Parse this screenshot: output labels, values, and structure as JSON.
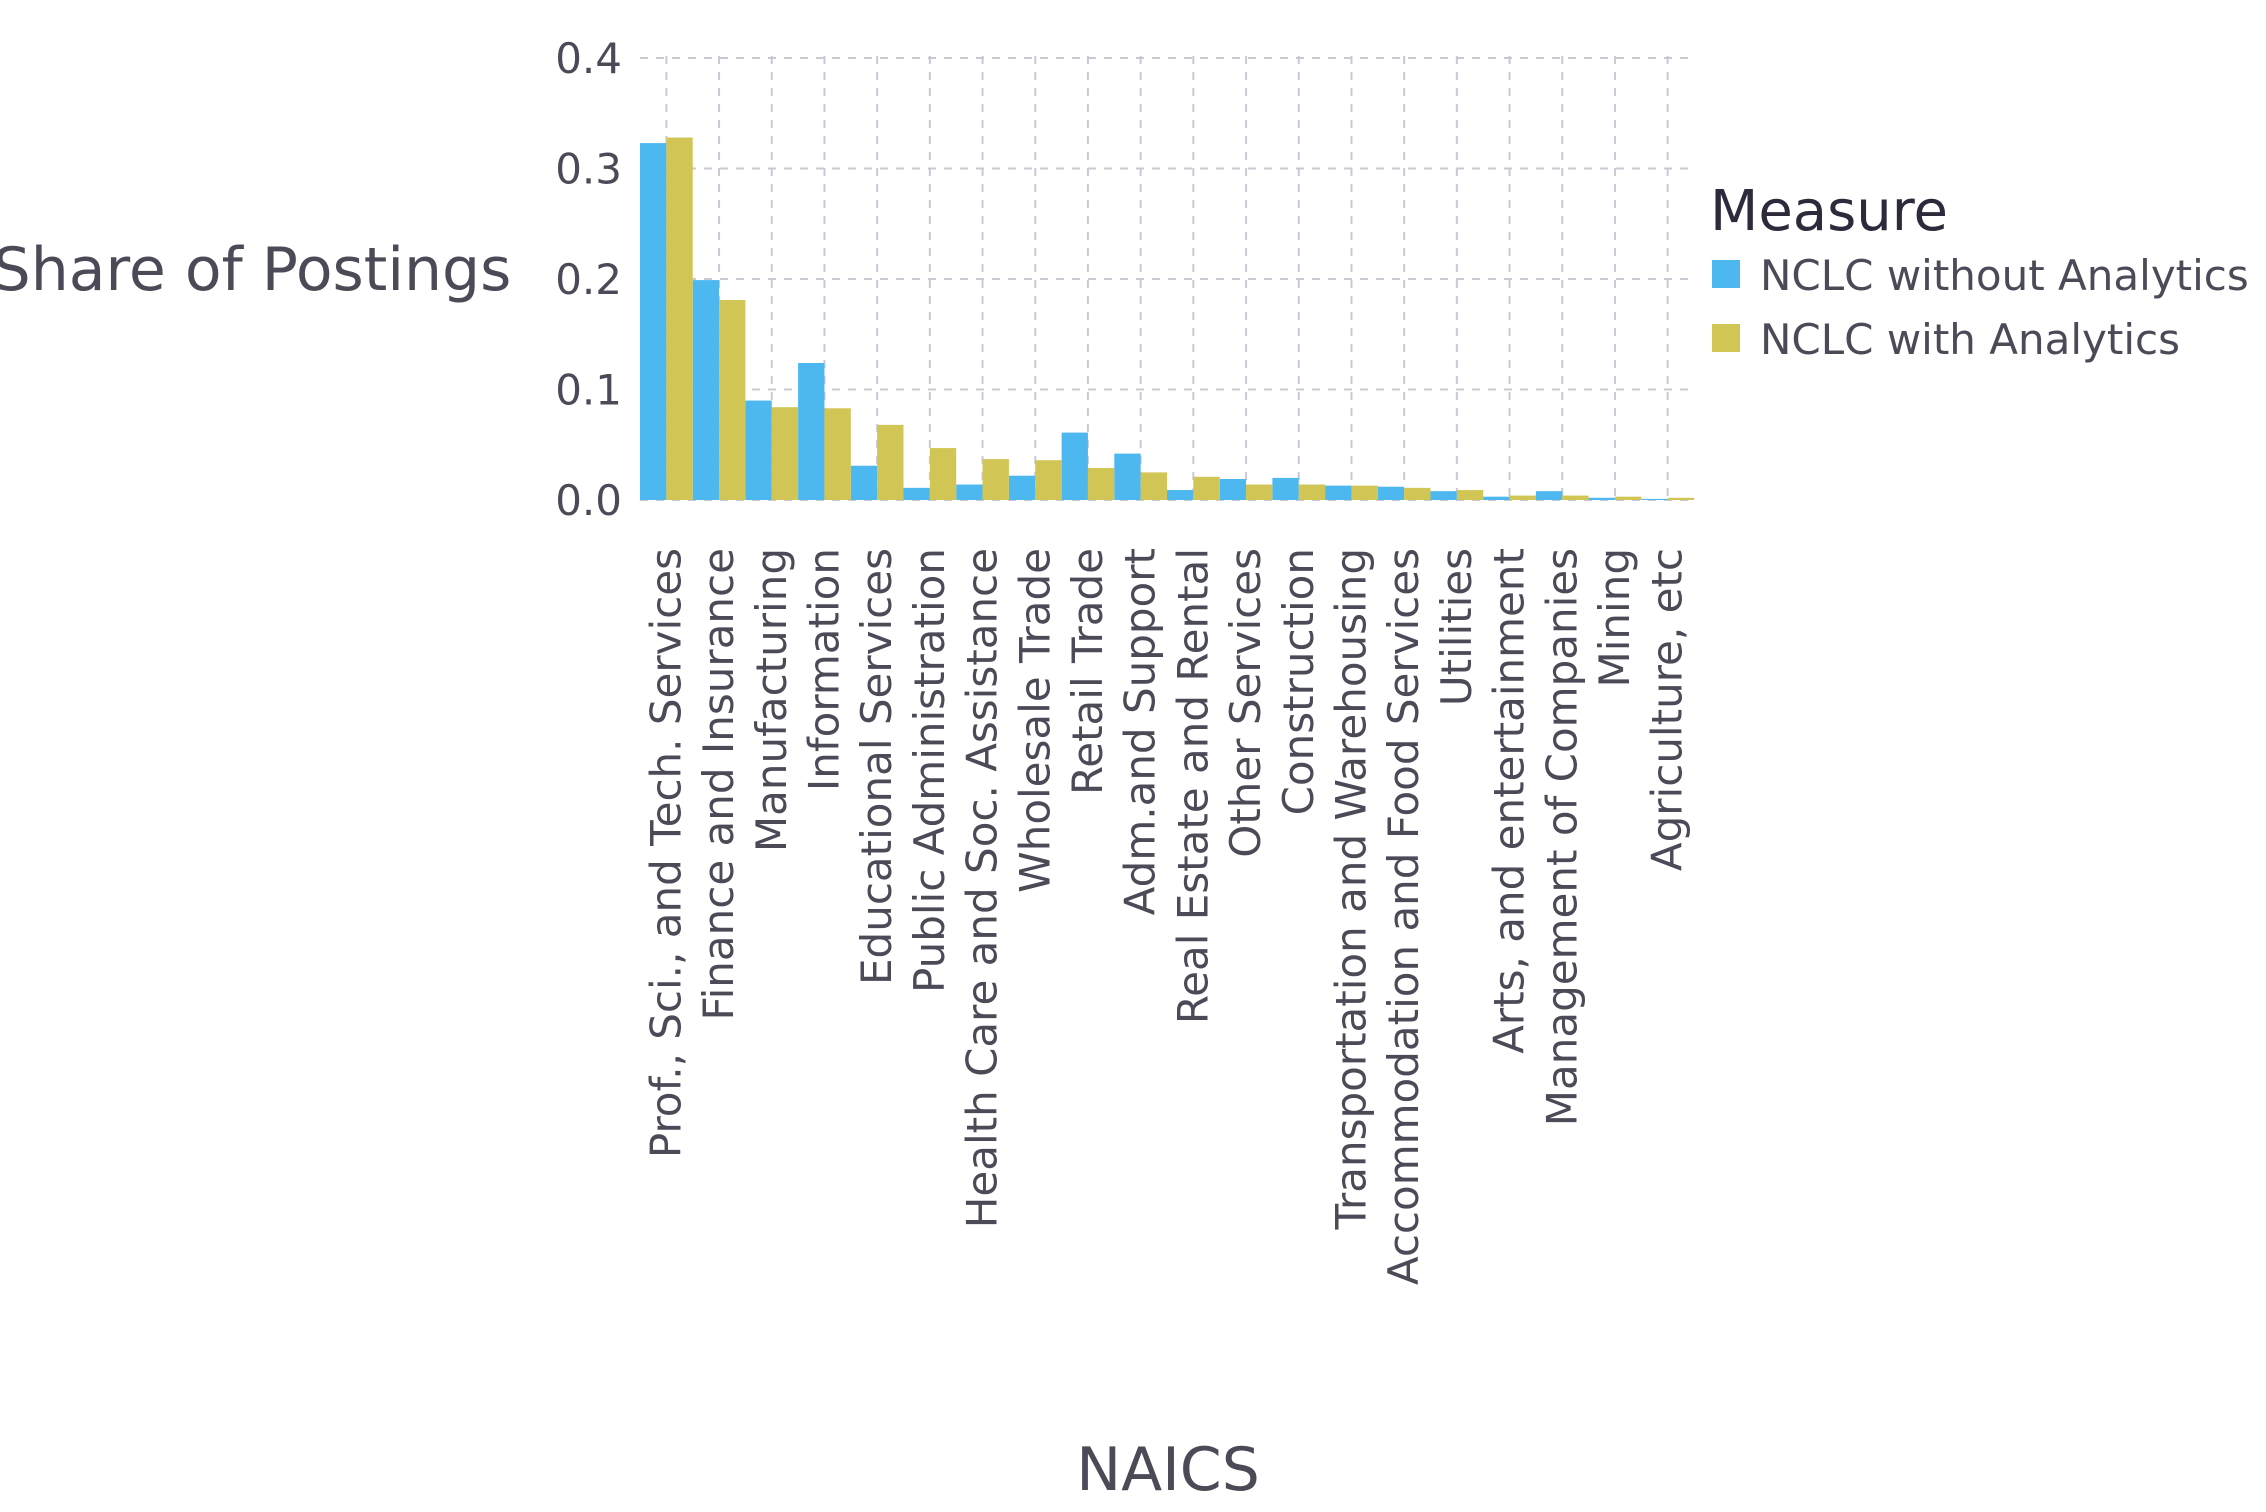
{
  "chart_data": {
    "type": "bar",
    "title": "",
    "xlabel": "NAICS",
    "ylabel": "Share of Postings",
    "ylim": [
      0,
      0.4
    ],
    "yticks": [
      "0.0",
      "0.1",
      "0.2",
      "0.3",
      "0.4"
    ],
    "grid": true,
    "legend": {
      "title": "Measure",
      "placement": "right"
    },
    "categories": [
      "Prof., Sci., and Tech. Services",
      "Finance and Insurance",
      "Manufacturing",
      "Information",
      "Educational Services",
      "Public Administration",
      "Health Care and Soc. Assistance",
      "Wholesale Trade",
      "Retail Trade",
      "Adm.and Support",
      "Real Estate and Rental",
      "Other Services",
      "Construction",
      "Transportation and Warehousing",
      "Accommodation and Food Services",
      "Utilities",
      "Arts, and entertainment",
      "Management of Companies",
      "Mining",
      "Agriculture, etc"
    ],
    "series": [
      {
        "name": "NCLC without Analytics",
        "color": "#4db8f0",
        "values": [
          0.323,
          0.199,
          0.09,
          0.124,
          0.031,
          0.011,
          0.014,
          0.022,
          0.061,
          0.042,
          0.009,
          0.019,
          0.02,
          0.013,
          0.012,
          0.008,
          0.003,
          0.008,
          0.002,
          0.001
        ]
      },
      {
        "name": "NCLC with Analytics",
        "color": "#d1c655",
        "values": [
          0.328,
          0.181,
          0.084,
          0.083,
          0.068,
          0.047,
          0.037,
          0.036,
          0.029,
          0.025,
          0.021,
          0.014,
          0.014,
          0.013,
          0.011,
          0.009,
          0.004,
          0.004,
          0.003,
          0.002
        ]
      }
    ]
  }
}
